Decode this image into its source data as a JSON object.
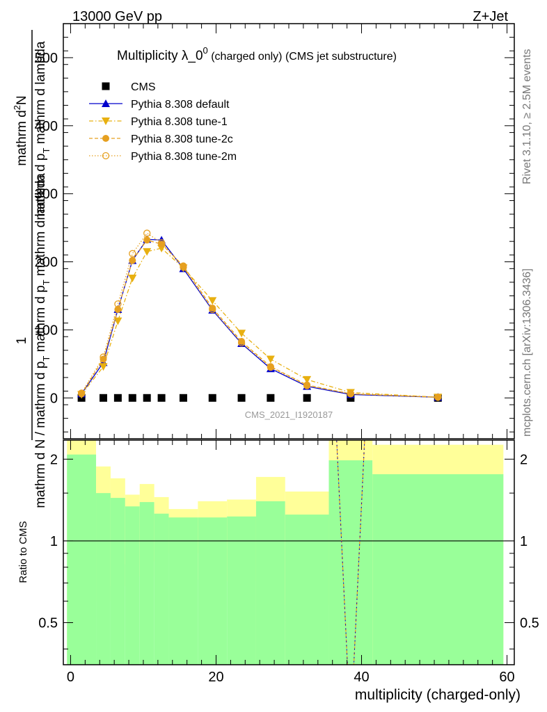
{
  "header": {
    "energy_label": "13000 GeV pp",
    "process_label": "Z+Jet"
  },
  "side_text": {
    "rivet": "Rivet 3.1.10, ≥ 2.5M events",
    "mcplots": "mcplots.cern.ch [arXiv:1306.3436]"
  },
  "watermark": "CMS_2021_I1920187",
  "chart_data": [
    {
      "type": "line",
      "title_main": "Multiplicity λ_0",
      "title_sup": "0",
      "title_sub": " (charged only) (CMS jet substructure)",
      "ylabel": {
        "numerator_1": "mathrm d",
        "numerator_sup": "2",
        "numerator_2": "N",
        "denominator_1": "mathrm d p",
        "denominator_sub": "T",
        "denominator_2": " mathrm d lambda",
        "prefix_one": "1",
        "prefix_den_1": "mathrm d N / mathrm d p",
        "prefix_den_sub": "T",
        "prefix_den_2": " mathrm d p",
        "prefix_den_sub2": "T",
        "prefix_den_3": " mathrm d lambda"
      },
      "xlim": [
        -1,
        61
      ],
      "ylim": [
        -60,
        550
      ],
      "yticks": [
        0,
        100,
        200,
        300,
        400,
        500
      ],
      "x": [
        1.5,
        4.5,
        6.5,
        8.5,
        10.5,
        12.5,
        15.5,
        19.5,
        23.5,
        27.5,
        32.5,
        38.5,
        50.5
      ],
      "series": [
        {
          "name": "CMS",
          "color": "#000000",
          "marker": "square",
          "values": [
            0,
            0,
            0,
            0,
            0,
            0,
            0,
            0,
            0,
            0,
            0,
            0,
            0
          ]
        },
        {
          "name": "Pythia 8.308 default",
          "color": "#0000cc",
          "marker": "triangle-up",
          "line": "solid",
          "values": [
            6,
            52,
            130,
            202,
            233,
            232,
            190,
            129,
            80,
            43,
            17,
            5,
            1
          ]
        },
        {
          "name": "Pythia 8.308 tune-1",
          "color": "#e8b010",
          "marker": "triangle-down",
          "line": "dashdot",
          "values": [
            5,
            46,
            113,
            176,
            215,
            220,
            191,
            143,
            95,
            57,
            27,
            8,
            1
          ]
        },
        {
          "name": "Pythia 8.308 tune-2c",
          "color": "#e6a020",
          "marker": "circle",
          "line": "dashed",
          "values": [
            6,
            57,
            130,
            202,
            232,
            226,
            194,
            132,
            83,
            46,
            19,
            6,
            1
          ]
        },
        {
          "name": "Pythia 8.308 tune-2m",
          "color": "#e6a020",
          "marker": "open-circle",
          "line": "dotted",
          "values": [
            7,
            60,
            138,
            212,
            242,
            228,
            192,
            130,
            81,
            45,
            18,
            6,
            1
          ]
        }
      ]
    },
    {
      "type": "area",
      "ylabel": "Ratio to CMS",
      "xlabel": "multiplicity (charged-only)",
      "xlim": [
        -1,
        61
      ],
      "ylim": [
        0.35,
        2.35
      ],
      "yticks": [
        0.5,
        1,
        2
      ],
      "xticks": [
        0,
        20,
        40,
        60
      ],
      "reference_line": 1,
      "bins": [
        {
          "lo": -0.5,
          "hi": 3.5,
          "green": [
            0.35,
            2.08
          ],
          "yellow": [
            0.35,
            2.35
          ]
        },
        {
          "lo": 3.5,
          "hi": 5.5,
          "green": [
            0.35,
            1.5
          ],
          "yellow": [
            0.6,
            1.88
          ]
        },
        {
          "lo": 5.5,
          "hi": 7.5,
          "green": [
            0.35,
            1.44
          ],
          "yellow": [
            0.68,
            1.7
          ]
        },
        {
          "lo": 7.5,
          "hi": 9.5,
          "green": [
            0.35,
            1.34
          ],
          "yellow": [
            0.82,
            1.48
          ]
        },
        {
          "lo": 9.5,
          "hi": 11.5,
          "green": [
            0.35,
            1.39
          ],
          "yellow": [
            0.74,
            1.62
          ]
        },
        {
          "lo": 11.5,
          "hi": 13.5,
          "green": [
            0.35,
            1.26
          ],
          "yellow": [
            0.84,
            1.45
          ]
        },
        {
          "lo": 13.5,
          "hi": 17.5,
          "green": [
            0.35,
            1.22
          ],
          "yellow": [
            0.9,
            1.31
          ]
        },
        {
          "lo": 17.5,
          "hi": 21.5,
          "green": [
            0.35,
            1.22
          ],
          "yellow": [
            0.72,
            1.4
          ]
        },
        {
          "lo": 21.5,
          "hi": 25.5,
          "green": [
            0.35,
            1.23
          ],
          "yellow": [
            0.71,
            1.42
          ]
        },
        {
          "lo": 25.5,
          "hi": 29.5,
          "green": [
            0.35,
            1.4
          ],
          "yellow": [
            0.35,
            1.72
          ]
        },
        {
          "lo": 29.5,
          "hi": 35.5,
          "green": [
            0.35,
            1.25
          ],
          "yellow": [
            0.58,
            1.52
          ]
        },
        {
          "lo": 35.5,
          "hi": 41.5,
          "green": [
            0.35,
            1.98
          ],
          "yellow": [
            0.35,
            2.35
          ]
        },
        {
          "lo": 41.5,
          "hi": 59.5,
          "green": [
            0.35,
            1.76
          ],
          "yellow": [
            0.35,
            2.26
          ]
        }
      ],
      "band_colors": {
        "inner": "#99ff99",
        "outer": "#ffff99"
      },
      "mc_ratio_x": [
        36.5,
        38.5,
        40.5
      ],
      "mc_ratio_values": [
        2.6,
        0.2,
        2.6
      ]
    }
  ]
}
